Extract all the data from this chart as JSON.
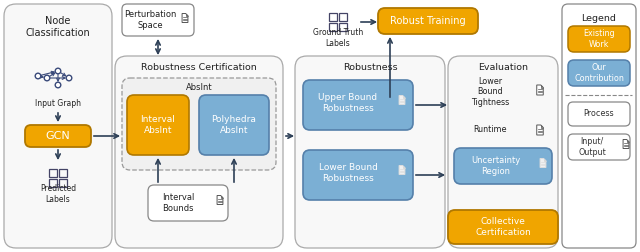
{
  "bg_color": "#ffffff",
  "arrow_color": "#2e4057",
  "orange_color": "#f0a500",
  "blue_color": "#7bafd4",
  "outer_fill": "#f7f7f7",
  "outer_stroke": "#aaaaaa",
  "white_box_stroke": "#888888",
  "dashed_stroke": "#999999",
  "node_classification_label": "Node\nClassification",
  "input_graph_label": "Input Graph",
  "gcn_label": "GCN",
  "predicted_labels_label": "Predicted\nLabels",
  "perturbation_space_label": "Perturbation\nSpace",
  "robustness_cert_label": "Robustness Certification",
  "absint_label": "AbsInt",
  "interval_absint_label": "Interval\nAbsInt",
  "polyhedra_absint_label": "Polyhedra\nAbsInt",
  "interval_bounds_label": "Interval\nBounds",
  "ground_truth_label": "Ground Truth\nLabels",
  "robust_training_label": "Robust Training",
  "robustness_label": "Robustness",
  "upper_bound_label": "Upper Bound\nRobustness",
  "lower_bound_label": "Lower Bound\nRobustness",
  "evaluation_label": "Evaluation",
  "lower_bound_tight_label": "Lower\nBound\nTightness",
  "runtime_label": "Runtime",
  "uncertainty_region_label": "Uncertainty\nRegion",
  "collective_cert_label": "Collective\nCertification",
  "legend_label": "Legend",
  "existing_work_label": "Existing\nWork",
  "our_contribution_label": "Our\nContribution",
  "process_label": "Process",
  "input_output_label": "Input/\nOutput"
}
